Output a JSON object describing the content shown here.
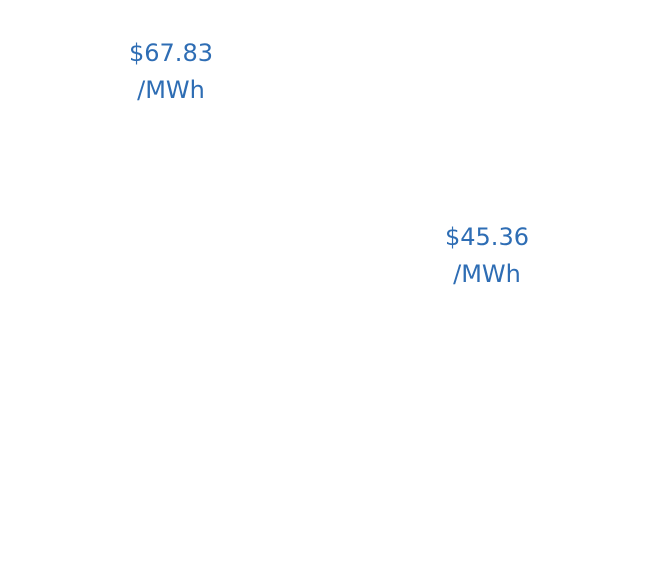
{
  "chart_data": {
    "type": "bar",
    "categories": [
      "",
      ""
    ],
    "values": [
      67.83,
      45.36
    ],
    "data_labels": [
      {
        "line1": "$67.83",
        "line2": "/MWh"
      },
      {
        "line1": "$45.36",
        "line2": "/MWh"
      }
    ],
    "title": "",
    "xlabel": "",
    "ylabel": "",
    "ylim": [
      0,
      70
    ],
    "grid": false,
    "label_color": "#2e6db4",
    "bar_color": "#ffffff"
  }
}
